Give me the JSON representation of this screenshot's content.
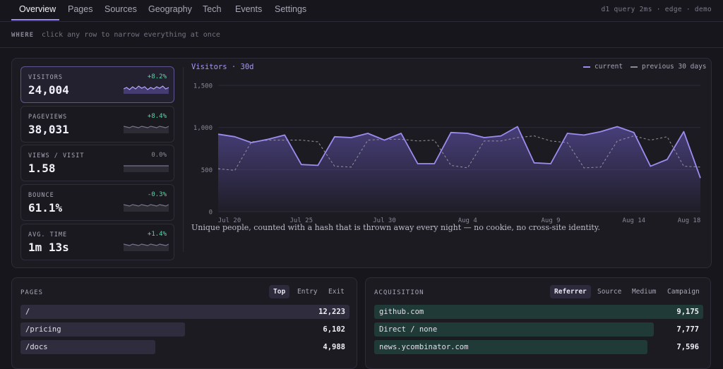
{
  "nav": {
    "tabs": [
      {
        "label": "Overview",
        "active": true
      },
      {
        "label": "Pages"
      },
      {
        "label": "Sources"
      },
      {
        "label": "Geography"
      },
      {
        "label": "Tech"
      },
      {
        "label": "Events"
      },
      {
        "label": "Settings"
      }
    ],
    "status": "d1 query 2ms · edge · demo"
  },
  "where": {
    "label": "WHERE",
    "hint": "click any row to narrow everything at once"
  },
  "kpis": [
    {
      "label": "VISITORS",
      "value": "24,004",
      "delta": "+8.2%",
      "trend": "up",
      "active": true
    },
    {
      "label": "PAGEVIEWS",
      "value": "38,031",
      "delta": "+8.4%",
      "trend": "up"
    },
    {
      "label": "VIEWS / VISIT",
      "value": "1.58",
      "delta": "0.0%",
      "trend": "flat"
    },
    {
      "label": "BOUNCE",
      "value": "61.1%",
      "delta": "-0.3%",
      "trend": "down"
    },
    {
      "label": "AVG. TIME",
      "value": "1m 13s",
      "delta": "+1.4%",
      "trend": "up"
    }
  ],
  "chart": {
    "title": "Visitors · 30d",
    "legend_current": "current",
    "legend_previous": "previous 30 days",
    "note": "Unique people, counted with a hash that is thrown away every night — no cookie, no cross-site identity."
  },
  "chart_data": {
    "type": "area",
    "y_ticks": [
      "1,500",
      "1,000",
      "500",
      "0"
    ],
    "ylim": [
      0,
      1500
    ],
    "x_tick_labels": [
      "Jul 20",
      "Jul 25",
      "Jul 30",
      "Aug 4",
      "Aug 9",
      "Aug 14",
      "Aug 18"
    ],
    "series": [
      {
        "name": "current",
        "values": [
          920,
          890,
          820,
          860,
          910,
          560,
          550,
          890,
          880,
          930,
          850,
          930,
          570,
          570,
          940,
          930,
          880,
          900,
          1010,
          580,
          570,
          930,
          910,
          950,
          1010,
          940,
          540,
          620,
          950,
          400
        ]
      },
      {
        "name": "previous 30 days",
        "values": [
          510,
          490,
          830,
          850,
          850,
          850,
          830,
          540,
          530,
          850,
          860,
          860,
          840,
          850,
          550,
          520,
          840,
          840,
          880,
          900,
          840,
          820,
          520,
          530,
          840,
          900,
          850,
          890,
          540,
          530
        ]
      }
    ],
    "colors": {
      "current": "#9d8cf0",
      "previous": "#8d8a98"
    },
    "grid": true
  },
  "colors": {
    "positive": "#5fd6a5",
    "neutral": "#8d8a98",
    "accent": "#9d8cf0",
    "page_bar": "#2f2d3d",
    "acq_bar": "#1f3a37"
  },
  "pages": {
    "title": "PAGES",
    "tabs": [
      {
        "label": "Top",
        "active": true
      },
      {
        "label": "Entry"
      },
      {
        "label": "Exit"
      }
    ],
    "rows": [
      {
        "label": "/",
        "value": "12,223",
        "share": 1.0
      },
      {
        "label": "/pricing",
        "value": "6,102",
        "share": 0.5
      },
      {
        "label": "/docs",
        "value": "4,988",
        "share": 0.41
      }
    ]
  },
  "acquisition": {
    "title": "ACQUISITION",
    "tabs": [
      {
        "label": "Referrer",
        "active": true
      },
      {
        "label": "Source"
      },
      {
        "label": "Medium"
      },
      {
        "label": "Campaign"
      }
    ],
    "rows": [
      {
        "label": "github.com",
        "value": "9,175",
        "share": 1.0
      },
      {
        "label": "Direct / none",
        "value": "7,777",
        "share": 0.85
      },
      {
        "label": "news.ycombinator.com",
        "value": "7,596",
        "share": 0.83
      }
    ]
  }
}
